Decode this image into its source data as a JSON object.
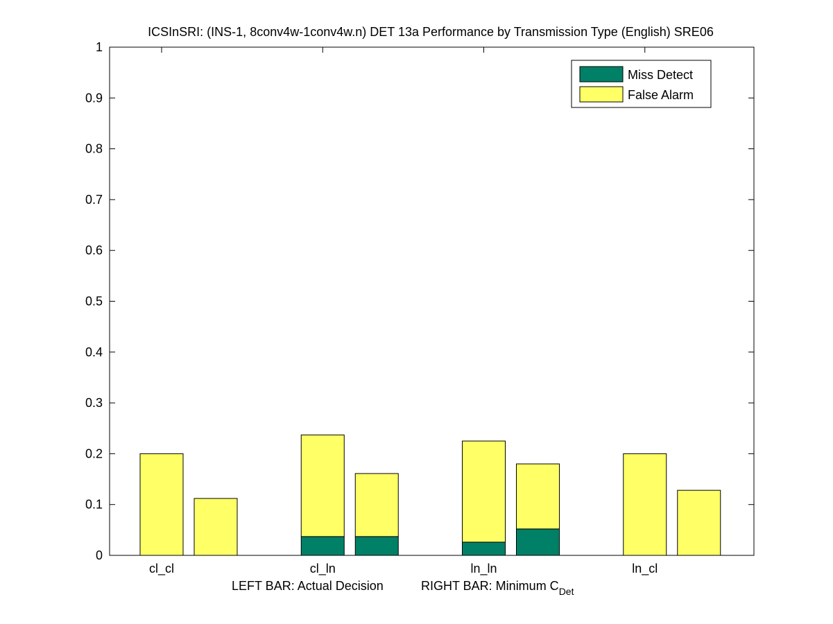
{
  "chart_data": {
    "type": "bar",
    "stacked": true,
    "title": "ICSInSRI: (INS-1, 8conv4w-1conv4w.n) DET 13a Performance by Transmission Type (English) SRE06",
    "xlabel": {
      "left": "LEFT BAR: Actual Decision",
      "right": "RIGHT BAR: Minimum C",
      "subscript": "Det"
    },
    "ylabel": "",
    "ylim": [
      0,
      1
    ],
    "yticks": [
      "0",
      "0.1",
      "0.2",
      "0.3",
      "0.4",
      "0.5",
      "0.6",
      "0.7",
      "0.8",
      "0.9",
      "1"
    ],
    "categories": [
      "cl_cl",
      "cl_ln",
      "ln_ln",
      "ln_cl"
    ],
    "bars_per_category": [
      "Actual Decision",
      "Minimum CDet"
    ],
    "series": [
      {
        "name": "Miss Detect",
        "color": "#008066",
        "values": [
          [
            0.0,
            0.0
          ],
          [
            0.037,
            0.037
          ],
          [
            0.026,
            0.052
          ],
          [
            0.0,
            0.0
          ]
        ]
      },
      {
        "name": "False Alarm",
        "color": "#ffff66",
        "values": [
          [
            0.2,
            0.112
          ],
          [
            0.2,
            0.124
          ],
          [
            0.199,
            0.128
          ],
          [
            0.2,
            0.128
          ]
        ]
      }
    ],
    "legend_position": "top-right",
    "grid": false
  }
}
